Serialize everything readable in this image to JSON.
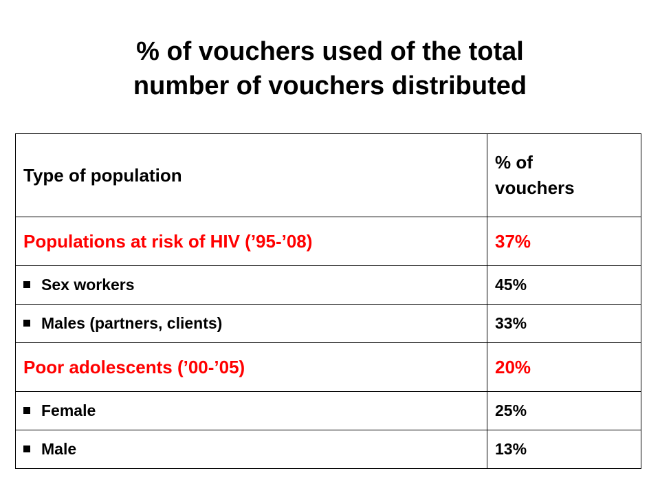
{
  "title": {
    "line1": "% of vouchers used of the total",
    "line2": "number of vouchers distributed"
  },
  "table": {
    "header": {
      "col1": "Type of population",
      "col2_line1": "% of",
      "col2_line2": "vouchers"
    },
    "rows": [
      {
        "label": "Populations at risk of HIV (’95-’08)",
        "value": "37%",
        "type": "group",
        "color": "#ff0000"
      },
      {
        "label": "Sex workers",
        "value": "45%",
        "type": "sub"
      },
      {
        "label": "Males (partners, clients)",
        "value": "33%",
        "type": "sub"
      },
      {
        "label": "Poor adolescents (’00-’05)",
        "value": "20%",
        "type": "group",
        "color": "#ff0000"
      },
      {
        "label": "Female",
        "value": "25%",
        "type": "sub"
      },
      {
        "label": "Male",
        "value": "13%",
        "type": "sub"
      }
    ]
  },
  "bullet_icon": "square-bullet-icon"
}
